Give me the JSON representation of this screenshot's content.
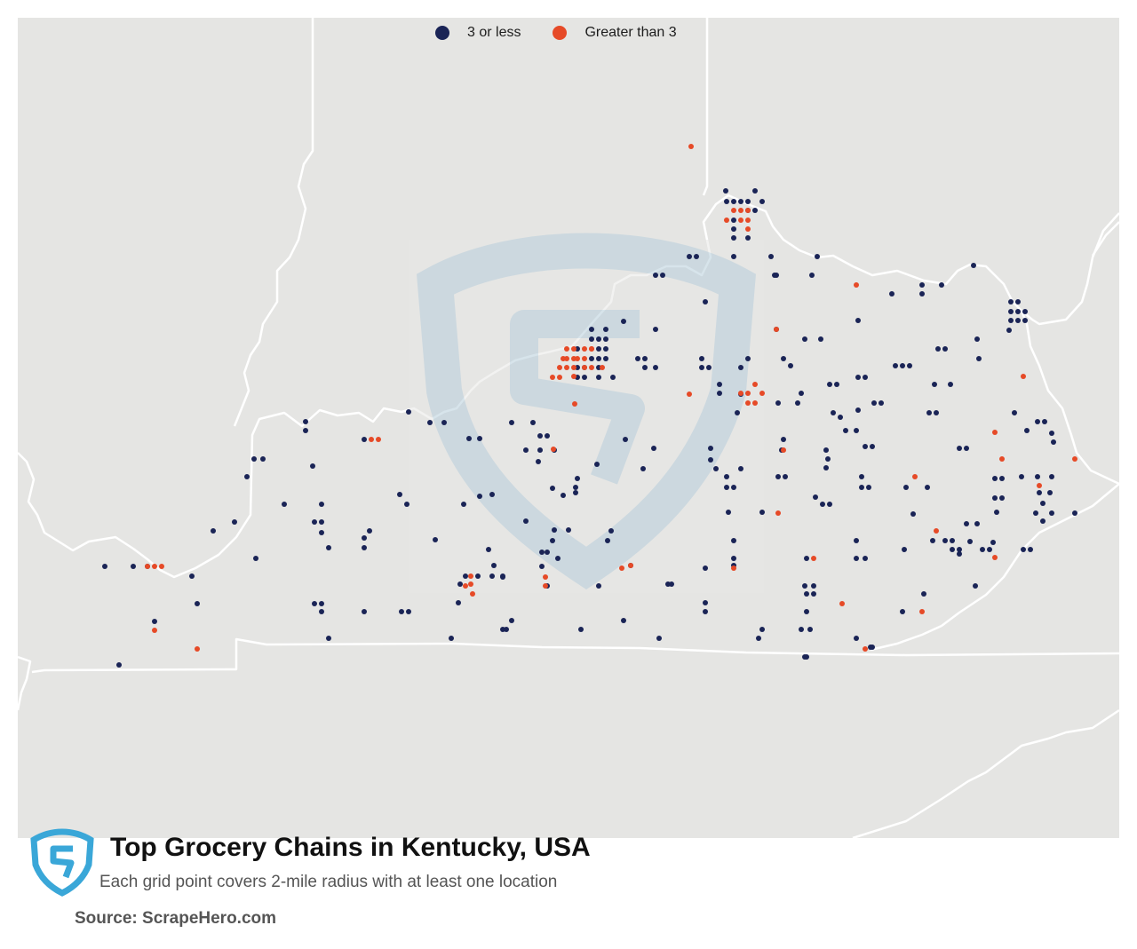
{
  "legend": {
    "items": [
      {
        "label": "3 or less",
        "color": "#1a2456"
      },
      {
        "label": "Greater than 3",
        "color": "#e64a27"
      }
    ]
  },
  "watermark_icon": "scrapehero-shield-icon",
  "footer": {
    "logo_icon": "scrapehero-logo-icon",
    "title": "Top Grocery Chains in Kentucky, USA",
    "subtitle": "Each grid point covers 2-mile radius with at least one location",
    "source": "Source: ScrapeHero.com"
  },
  "colors": {
    "map_background": "#e5e5e3",
    "borders": "#ffffff",
    "low": "#1a2456",
    "high": "#e64a27",
    "watermark": "#b8cfdc",
    "logo": "#3aa7d8"
  }
}
